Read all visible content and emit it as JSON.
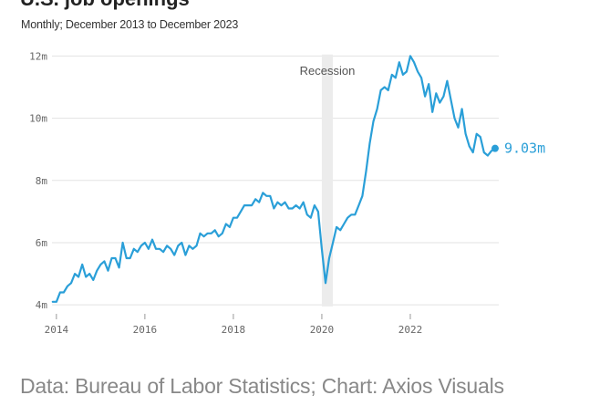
{
  "header": {
    "title_partial": "U.S. job openings",
    "subtitle": "Monthly; December 2013 to December 2023"
  },
  "footer": {
    "source": "Data: Bureau of Labor Statistics; Chart: Axios Visuals"
  },
  "colors": {
    "line": "#2a9fd8",
    "band": "#ececec",
    "grid": "#e3e3e3"
  },
  "chart_data": {
    "type": "line",
    "title": "U.S. job openings",
    "subtitle": "Monthly; December 2013 to December 2023",
    "xlabel": "",
    "ylabel": "",
    "x_ticks": [
      2014,
      2016,
      2018,
      2020,
      2022
    ],
    "y_ticks": [
      4,
      6,
      8,
      10,
      12
    ],
    "y_tick_labels": [
      "4m",
      "6m",
      "8m",
      "10m",
      "12m"
    ],
    "xlim": [
      2013.9,
      2024.0
    ],
    "ylim": [
      3.8,
      12.1
    ],
    "grid": true,
    "annotation": {
      "label": "Recession",
      "start": 2020.0,
      "end": 2020.25
    },
    "end_label": "9.03m",
    "series": [
      {
        "name": "Job openings",
        "x_start": 2013.9167,
        "step": 0.083333,
        "values": [
          4.1,
          4.1,
          4.4,
          4.4,
          4.6,
          4.7,
          5.0,
          4.9,
          5.3,
          4.9,
          5.0,
          4.8,
          5.1,
          5.3,
          5.4,
          5.1,
          5.5,
          5.5,
          5.2,
          6.0,
          5.5,
          5.5,
          5.8,
          5.7,
          5.9,
          6.0,
          5.8,
          6.1,
          5.8,
          5.8,
          5.7,
          5.9,
          5.8,
          5.6,
          5.9,
          6.0,
          5.6,
          5.9,
          5.8,
          5.9,
          6.3,
          6.2,
          6.3,
          6.3,
          6.4,
          6.2,
          6.3,
          6.6,
          6.5,
          6.8,
          6.8,
          7.0,
          7.2,
          7.2,
          7.2,
          7.4,
          7.3,
          7.6,
          7.5,
          7.5,
          7.1,
          7.3,
          7.2,
          7.3,
          7.1,
          7.1,
          7.2,
          7.1,
          7.3,
          6.9,
          6.8,
          7.2,
          7.0,
          5.8,
          4.7,
          5.5,
          6.0,
          6.5,
          6.4,
          6.6,
          6.8,
          6.9,
          6.9,
          7.2,
          7.5,
          8.3,
          9.2,
          9.9,
          10.3,
          10.9,
          11.0,
          10.9,
          11.4,
          11.3,
          11.8,
          11.4,
          11.5,
          12.0,
          11.8,
          11.5,
          11.3,
          10.7,
          11.1,
          10.2,
          10.8,
          10.5,
          10.7,
          11.2,
          10.6,
          10.0,
          9.7,
          10.3,
          9.5,
          9.1,
          8.9,
          9.5,
          9.4,
          8.9,
          8.8,
          8.95,
          9.03
        ]
      }
    ]
  }
}
